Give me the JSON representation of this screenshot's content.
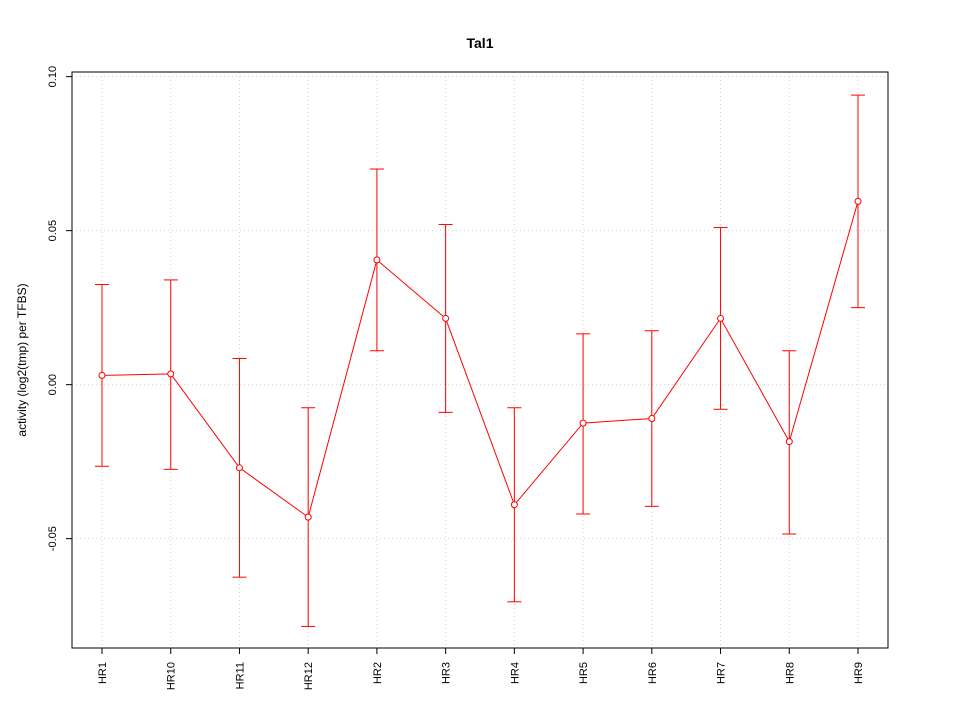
{
  "chart_data": {
    "type": "line",
    "title": "Tal1",
    "xlabel": "",
    "ylabel": "activity (log2(tmp) per TFBS)",
    "categories": [
      "HR1",
      "HR10",
      "HR11",
      "HR12",
      "HR2",
      "HR3",
      "HR4",
      "HR5",
      "HR6",
      "HR7",
      "HR8",
      "HR9"
    ],
    "values": [
      0.003,
      0.0035,
      -0.027,
      -0.043,
      0.0405,
      0.0215,
      -0.039,
      -0.0125,
      -0.011,
      0.0215,
      -0.0185,
      0.0595
    ],
    "error_lower": [
      -0.0265,
      -0.0275,
      -0.0625,
      -0.0785,
      0.011,
      -0.009,
      -0.0705,
      -0.042,
      -0.0395,
      -0.008,
      -0.0485,
      0.025
    ],
    "error_upper": [
      0.0325,
      0.034,
      0.0085,
      -0.0075,
      0.07,
      0.052,
      -0.0075,
      0.0165,
      0.0175,
      0.051,
      0.011,
      0.094
    ],
    "y_ticks": [
      -0.05,
      0.0,
      0.05,
      0.1
    ],
    "y_tick_labels": [
      "-0.05",
      "0.00",
      "0.05",
      "0.10"
    ],
    "ylim": [
      -0.0855,
      0.1015
    ],
    "grid": true,
    "series_color": "#ff0000",
    "grid_color": "#d3d3d3"
  }
}
